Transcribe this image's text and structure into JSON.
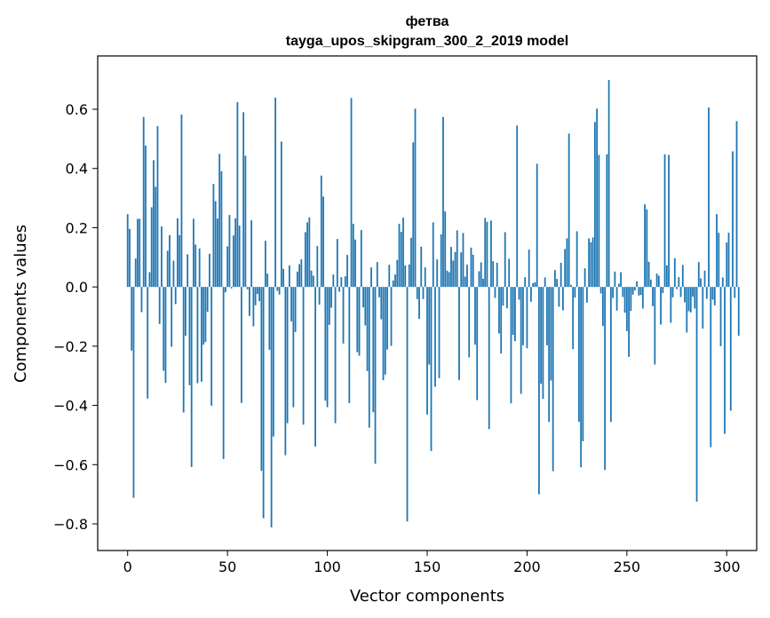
{
  "chart_data": {
    "type": "bar",
    "title": "фетва",
    "subtitle": "tayga_upos_skipgram_300_2_2019 model",
    "xlabel": "Vector components",
    "ylabel": "Components values",
    "xlim": [
      -15,
      315
    ],
    "ylim": [
      -0.89,
      0.78
    ],
    "xticks": [
      0,
      50,
      100,
      150,
      200,
      250,
      300
    ],
    "yticks": [
      -0.8,
      -0.6,
      -0.4,
      -0.2,
      0.0,
      0.2,
      0.4,
      0.6
    ],
    "ytick_labels": [
      "−0.8",
      "−0.6",
      "−0.4",
      "−0.2",
      "0.0",
      "0.2",
      "0.4",
      "0.6"
    ],
    "grid": false,
    "bar_color": "#1f77b4",
    "values": [
      0.246,
      0.196,
      -0.215,
      -0.712,
      0.096,
      0.23,
      0.23,
      -0.085,
      0.574,
      0.477,
      -0.377,
      0.05,
      0.269,
      0.428,
      0.338,
      0.543,
      -0.125,
      0.204,
      -0.283,
      -0.324,
      0.122,
      0.175,
      -0.202,
      0.089,
      -0.058,
      0.232,
      0.175,
      0.582,
      -0.424,
      -0.165,
      0.11,
      -0.332,
      -0.608,
      0.23,
      0.143,
      -0.325,
      0.13,
      -0.32,
      -0.195,
      -0.186,
      -0.084,
      0.112,
      -0.401,
      0.348,
      0.29,
      0.231,
      0.449,
      0.391,
      -0.581,
      -0.018,
      0.137,
      0.243,
      -0.005,
      0.174,
      0.232,
      0.624,
      0.207,
      -0.392,
      0.59,
      0.443,
      -0.008,
      -0.098,
      0.225,
      -0.133,
      -0.062,
      -0.024,
      -0.048,
      -0.621,
      -0.781,
      0.156,
      0.045,
      -0.212,
      -0.812,
      -0.505,
      0.639,
      -0.013,
      -0.026,
      0.491,
      0.061,
      -0.568,
      -0.46,
      0.073,
      -0.116,
      -0.406,
      -0.152,
      0.052,
      0.077,
      0.093,
      -0.465,
      0.185,
      0.218,
      0.235,
      0.055,
      0.038,
      -0.539,
      0.138,
      -0.06,
      0.376,
      0.305,
      -0.384,
      -0.406,
      -0.128,
      -0.07,
      0.042,
      -0.46,
      0.162,
      -0.016,
      0.033,
      -0.191,
      0.036,
      0.108,
      -0.392,
      0.638,
      0.213,
      0.16,
      -0.22,
      -0.232,
      0.192,
      -0.069,
      -0.13,
      -0.284,
      -0.475,
      0.066,
      -0.423,
      -0.597,
      0.084,
      -0.035,
      -0.109,
      -0.315,
      -0.296,
      -0.211,
      0.075,
      -0.199,
      0.022,
      0.042,
      0.091,
      0.213,
      0.186,
      0.234,
      0.073,
      -0.792,
      0.076,
      0.166,
      0.488,
      0.602,
      -0.041,
      -0.108,
      0.136,
      -0.041,
      0.066,
      -0.431,
      -0.262,
      -0.554,
      0.218,
      -0.337,
      0.093,
      -0.308,
      0.178,
      0.574,
      0.255,
      0.055,
      0.05,
      0.135,
      0.089,
      0.118,
      0.191,
      -0.314,
      0.117,
      0.182,
      0.035,
      0.075,
      -0.238,
      0.133,
      0.109,
      -0.195,
      -0.382,
      0.053,
      0.083,
      0.028,
      0.233,
      0.22,
      -0.48,
      0.224,
      0.087,
      -0.037,
      0.082,
      -0.157,
      -0.225,
      -0.063,
      0.185,
      -0.072,
      0.095,
      -0.393,
      -0.162,
      -0.183,
      0.545,
      -0.043,
      -0.361,
      -0.197,
      0.033,
      -0.207,
      0.126,
      -0.05,
      0.013,
      0.016,
      0.416,
      -0.7,
      -0.327,
      -0.378,
      0.032,
      -0.197,
      -0.456,
      -0.316,
      -0.622,
      0.057,
      0.027,
      -0.067,
      0.082,
      -0.079,
      0.128,
      0.164,
      0.518,
      0.007,
      -0.21,
      -0.036,
      0.188,
      -0.455,
      -0.609,
      -0.521,
      0.063,
      -0.053,
      0.164,
      0.151,
      0.167,
      0.557,
      0.602,
      0.446,
      -0.022,
      -0.132,
      -0.618,
      0.448,
      0.699,
      -0.456,
      -0.037,
      0.052,
      -0.08,
      0.011,
      0.05,
      -0.034,
      -0.087,
      -0.149,
      -0.236,
      -0.081,
      -0.026,
      -0.012,
      0.019,
      -0.029,
      -0.027,
      -0.073,
      0.279,
      0.262,
      0.085,
      0.025,
      -0.065,
      -0.262,
      0.045,
      0.038,
      -0.127,
      -0.021,
      0.448,
      0.073,
      0.446,
      -0.121,
      -0.035,
      0.097,
      -0.007,
      0.033,
      -0.034,
      0.074,
      -0.052,
      -0.154,
      -0.082,
      -0.086,
      -0.033,
      -0.073,
      -0.725,
      0.084,
      0.029,
      -0.141,
      0.055,
      -0.04,
      0.606,
      -0.541,
      -0.043,
      -0.062,
      0.246,
      0.183,
      -0.2,
      0.032,
      -0.496,
      0.15,
      0.183,
      -0.418,
      0.458,
      -0.037,
      0.56,
      -0.165
    ]
  }
}
